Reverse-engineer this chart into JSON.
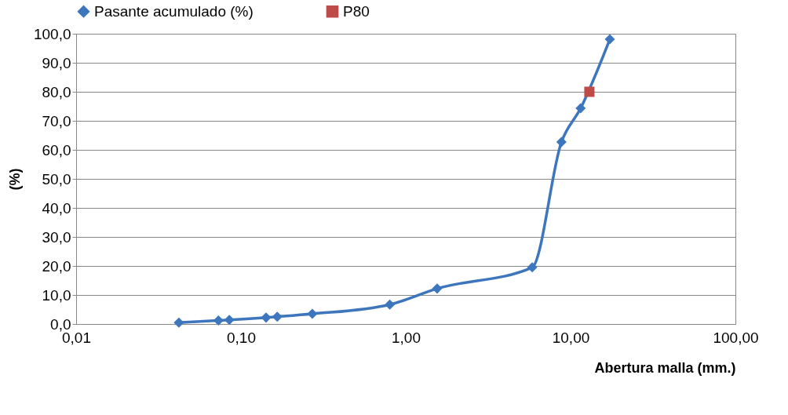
{
  "chart_data": {
    "type": "line",
    "xlabel": "Abertura malla (mm.)",
    "ylabel": "(%)",
    "log": "x",
    "grid": "y",
    "legend": "top",
    "xlim": [
      0.01,
      100
    ],
    "xticks": [
      {
        "value": 0.01,
        "label": "0,01"
      },
      {
        "value": 0.1,
        "label": "0,10"
      },
      {
        "value": 1,
        "label": "1,00"
      },
      {
        "value": 10,
        "label": "10,00"
      },
      {
        "value": 100,
        "label": "100,00"
      }
    ],
    "ylim": [
      0,
      100
    ],
    "yticks": [
      {
        "value": 0,
        "label": "0,0"
      },
      {
        "value": 10,
        "label": "10,0"
      },
      {
        "value": 20,
        "label": "20,0"
      },
      {
        "value": 30,
        "label": "30,0"
      },
      {
        "value": 40,
        "label": "40,0"
      },
      {
        "value": 50,
        "label": "50,0"
      },
      {
        "value": 60,
        "label": "60,0"
      },
      {
        "value": 70,
        "label": "70,0"
      },
      {
        "value": 80,
        "label": "80,0"
      },
      {
        "value": 90,
        "label": "90,0"
      },
      {
        "value": 100,
        "label": "100,0"
      }
    ],
    "series": [
      {
        "name": "Pasante acumulado (%)",
        "type": "line",
        "color": "#3d76bd",
        "marker": "diamond",
        "x": [
          0.042,
          0.073,
          0.085,
          0.142,
          0.166,
          0.271,
          0.8,
          1.55,
          5.85,
          8.8,
          11.5,
          17.3
        ],
        "values": [
          0.5,
          1.2,
          1.4,
          2.2,
          2.5,
          3.5,
          6.7,
          12.2,
          19.5,
          62.7,
          74.3,
          98.1
        ]
      },
      {
        "name": "P80",
        "type": "scatter",
        "color": "#be4b48",
        "marker": "square",
        "x": [
          13.0
        ],
        "values": [
          80
        ]
      }
    ]
  }
}
